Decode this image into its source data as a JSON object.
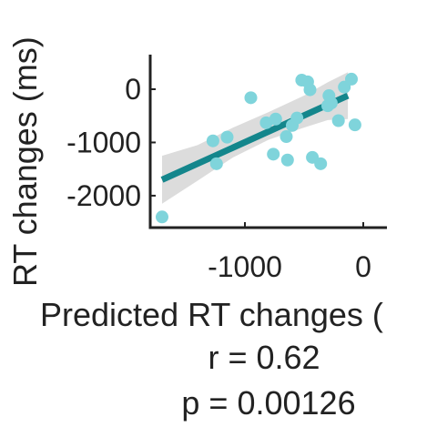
{
  "chart_data": {
    "type": "scatter",
    "title": "",
    "xlabel": "Predicted RT changes (",
    "ylabel": "RT changes (ms)",
    "xlim": [
      -1800,
      200
    ],
    "ylim": [
      -2600,
      650
    ],
    "xticks": [
      -1000,
      0
    ],
    "xtick_labels": [
      "-1000",
      "0"
    ],
    "yticks": [
      0,
      -1000,
      -2000
    ],
    "ytick_labels": [
      "0",
      "-1000",
      "-2000"
    ],
    "grid": false,
    "series": [
      {
        "points": [
          {
            "x": -1700,
            "y": -2400
          },
          {
            "x": -1270,
            "y": -970
          },
          {
            "x": -1240,
            "y": -1400
          },
          {
            "x": -1150,
            "y": -900
          },
          {
            "x": -950,
            "y": -160
          },
          {
            "x": -820,
            "y": -630
          },
          {
            "x": -760,
            "y": -1220
          },
          {
            "x": -740,
            "y": -560
          },
          {
            "x": -650,
            "y": -890
          },
          {
            "x": -640,
            "y": -1330
          },
          {
            "x": -600,
            "y": -680
          },
          {
            "x": -560,
            "y": -540
          },
          {
            "x": -520,
            "y": 170
          },
          {
            "x": -470,
            "y": 140
          },
          {
            "x": -450,
            "y": -10
          },
          {
            "x": -430,
            "y": -1280
          },
          {
            "x": -360,
            "y": -1400
          },
          {
            "x": -300,
            "y": -310
          },
          {
            "x": -290,
            "y": -120
          },
          {
            "x": -270,
            "y": -260
          },
          {
            "x": -210,
            "y": -590
          },
          {
            "x": -160,
            "y": 40
          },
          {
            "x": -100,
            "y": 190
          },
          {
            "x": -70,
            "y": -670
          }
        ]
      }
    ],
    "fit_line": {
      "x1": -1700,
      "y1": -1700,
      "x2": -130,
      "y2": -120
    },
    "confidence_band": {
      "x": [
        -1700,
        -1400,
        -1100,
        -800,
        -500,
        -300,
        -130
      ],
      "upper": [
        -1250,
        -1050,
        -720,
        -430,
        -120,
        130,
        320
      ],
      "lower": [
        -2150,
        -1720,
        -1280,
        -950,
        -720,
        -580,
        -560
      ]
    },
    "annotations": [
      "r = 0.62",
      "p  = 0.00126"
    ],
    "colors": {
      "points": "#7fd4db",
      "fit_line": "#14868c",
      "band": "#dcdcdc",
      "axis": "#222222"
    }
  }
}
